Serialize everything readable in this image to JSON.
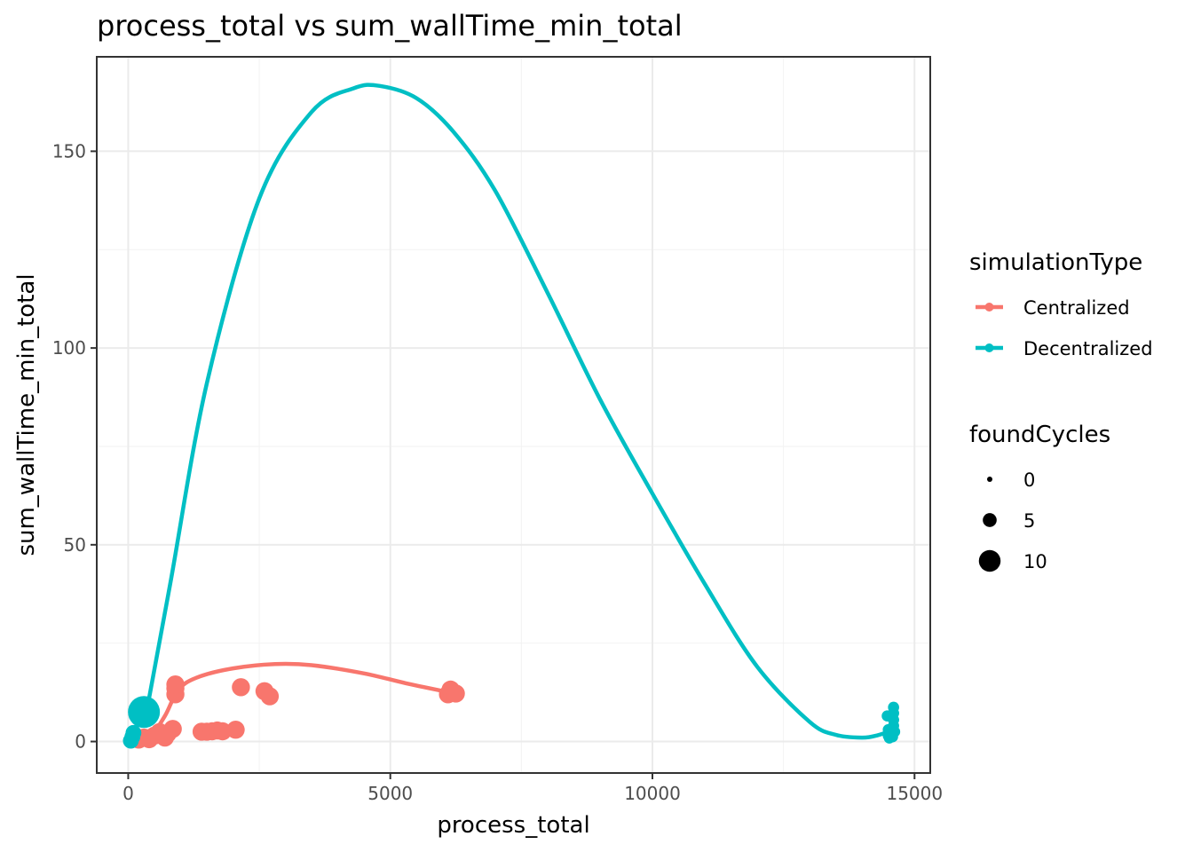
{
  "chart_data": {
    "type": "scatter",
    "title": "process_total  vs  sum_wallTime_min_total",
    "xlabel": "process_total",
    "ylabel": "sum_wallTime_min_total",
    "xlim": [
      -600,
      15300
    ],
    "ylim": [
      -8,
      174
    ],
    "x_ticks": [
      0,
      5000,
      10000,
      15000
    ],
    "x_tick_labels": [
      "0",
      "5000",
      "10000",
      "15000"
    ],
    "y_ticks": [
      0,
      50,
      100,
      150
    ],
    "y_tick_labels": [
      "0",
      "50",
      "100",
      "150"
    ],
    "grid": true,
    "legend_position": "right",
    "color_legend": {
      "title": "simulationType",
      "entries": [
        {
          "label": "Centralized",
          "color": "#F8766D"
        },
        {
          "label": "Decentralized",
          "color": "#00BFC4"
        }
      ]
    },
    "size_legend": {
      "title": "foundCycles",
      "entries": [
        {
          "label": "0",
          "value": 0
        },
        {
          "label": "5",
          "value": 5
        },
        {
          "label": "10",
          "value": 10
        }
      ]
    },
    "series": [
      {
        "name": "Centralized",
        "color": "#F8766D",
        "points": [
          {
            "x": 200,
            "y": 0.5,
            "foundCycles": 4
          },
          {
            "x": 300,
            "y": 1.0,
            "foundCycles": 4
          },
          {
            "x": 400,
            "y": 0.6,
            "foundCycles": 4
          },
          {
            "x": 500,
            "y": 1.5,
            "foundCycles": 4
          },
          {
            "x": 600,
            "y": 2.4,
            "foundCycles": 4
          },
          {
            "x": 700,
            "y": 1.0,
            "foundCycles": 4
          },
          {
            "x": 750,
            "y": 2.0,
            "foundCycles": 4
          },
          {
            "x": 850,
            "y": 3.2,
            "foundCycles": 4
          },
          {
            "x": 900,
            "y": 12.0,
            "foundCycles": 4
          },
          {
            "x": 900,
            "y": 13.5,
            "foundCycles": 4
          },
          {
            "x": 900,
            "y": 14.5,
            "foundCycles": 4
          },
          {
            "x": 1400,
            "y": 2.5,
            "foundCycles": 4
          },
          {
            "x": 1500,
            "y": 2.5,
            "foundCycles": 4
          },
          {
            "x": 1600,
            "y": 2.6,
            "foundCycles": 4
          },
          {
            "x": 1700,
            "y": 2.8,
            "foundCycles": 4
          },
          {
            "x": 1800,
            "y": 2.6,
            "foundCycles": 4
          },
          {
            "x": 2050,
            "y": 3.0,
            "foundCycles": 4
          },
          {
            "x": 2150,
            "y": 13.8,
            "foundCycles": 4
          },
          {
            "x": 2600,
            "y": 12.8,
            "foundCycles": 4
          },
          {
            "x": 2700,
            "y": 11.5,
            "foundCycles": 4
          },
          {
            "x": 6100,
            "y": 12.0,
            "foundCycles": 4
          },
          {
            "x": 6150,
            "y": 13.2,
            "foundCycles": 4
          },
          {
            "x": 6250,
            "y": 12.2,
            "foundCycles": 4
          }
        ],
        "smooth": [
          {
            "x": 150,
            "y": 0.0
          },
          {
            "x": 400,
            "y": 0.8
          },
          {
            "x": 700,
            "y": 6.5
          },
          {
            "x": 950,
            "y": 13.0
          },
          {
            "x": 1300,
            "y": 16.2
          },
          {
            "x": 2000,
            "y": 18.6
          },
          {
            "x": 2800,
            "y": 19.7
          },
          {
            "x": 3500,
            "y": 19.4
          },
          {
            "x": 4500,
            "y": 17.3
          },
          {
            "x": 5300,
            "y": 14.8
          },
          {
            "x": 6200,
            "y": 12.3
          }
        ]
      },
      {
        "name": "Decentralized",
        "color": "#00BFC4",
        "points": [
          {
            "x": 50,
            "y": 0.2,
            "foundCycles": 3
          },
          {
            "x": 80,
            "y": 1.2,
            "foundCycles": 3
          },
          {
            "x": 100,
            "y": 2.2,
            "foundCycles": 3
          },
          {
            "x": 300,
            "y": 7.5,
            "foundCycles": 10
          },
          {
            "x": 14480,
            "y": 6.5,
            "foundCycles": 1
          },
          {
            "x": 14500,
            "y": 1.5,
            "foundCycles": 1
          },
          {
            "x": 14500,
            "y": 3.0,
            "foundCycles": 1
          },
          {
            "x": 14520,
            "y": 0.9,
            "foundCycles": 1
          },
          {
            "x": 14540,
            "y": 2.2,
            "foundCycles": 1
          },
          {
            "x": 14580,
            "y": 1.2,
            "foundCycles": 1
          },
          {
            "x": 14600,
            "y": 4.0,
            "foundCycles": 1
          },
          {
            "x": 14600,
            "y": 5.5,
            "foundCycles": 1
          },
          {
            "x": 14600,
            "y": 7.2,
            "foundCycles": 1
          },
          {
            "x": 14600,
            "y": 8.7,
            "foundCycles": 1
          },
          {
            "x": 14620,
            "y": 2.5,
            "foundCycles": 1
          }
        ],
        "smooth": [
          {
            "x": 300,
            "y": 4.0
          },
          {
            "x": 800,
            "y": 40.0
          },
          {
            "x": 1500,
            "y": 91.0
          },
          {
            "x": 2500,
            "y": 138.0
          },
          {
            "x": 3500,
            "y": 160.0
          },
          {
            "x": 4300,
            "y": 166.0
          },
          {
            "x": 4800,
            "y": 166.6
          },
          {
            "x": 5500,
            "y": 163.5
          },
          {
            "x": 6200,
            "y": 155.0
          },
          {
            "x": 7000,
            "y": 140.0
          },
          {
            "x": 8000,
            "y": 114.0
          },
          {
            "x": 9000,
            "y": 87.0
          },
          {
            "x": 10000,
            "y": 63.0
          },
          {
            "x": 11000,
            "y": 40.0
          },
          {
            "x": 12000,
            "y": 19.0
          },
          {
            "x": 13000,
            "y": 5.0
          },
          {
            "x": 13500,
            "y": 1.7
          },
          {
            "x": 14000,
            "y": 1.0
          },
          {
            "x": 14300,
            "y": 1.6
          },
          {
            "x": 14600,
            "y": 3.0
          }
        ]
      }
    ]
  }
}
